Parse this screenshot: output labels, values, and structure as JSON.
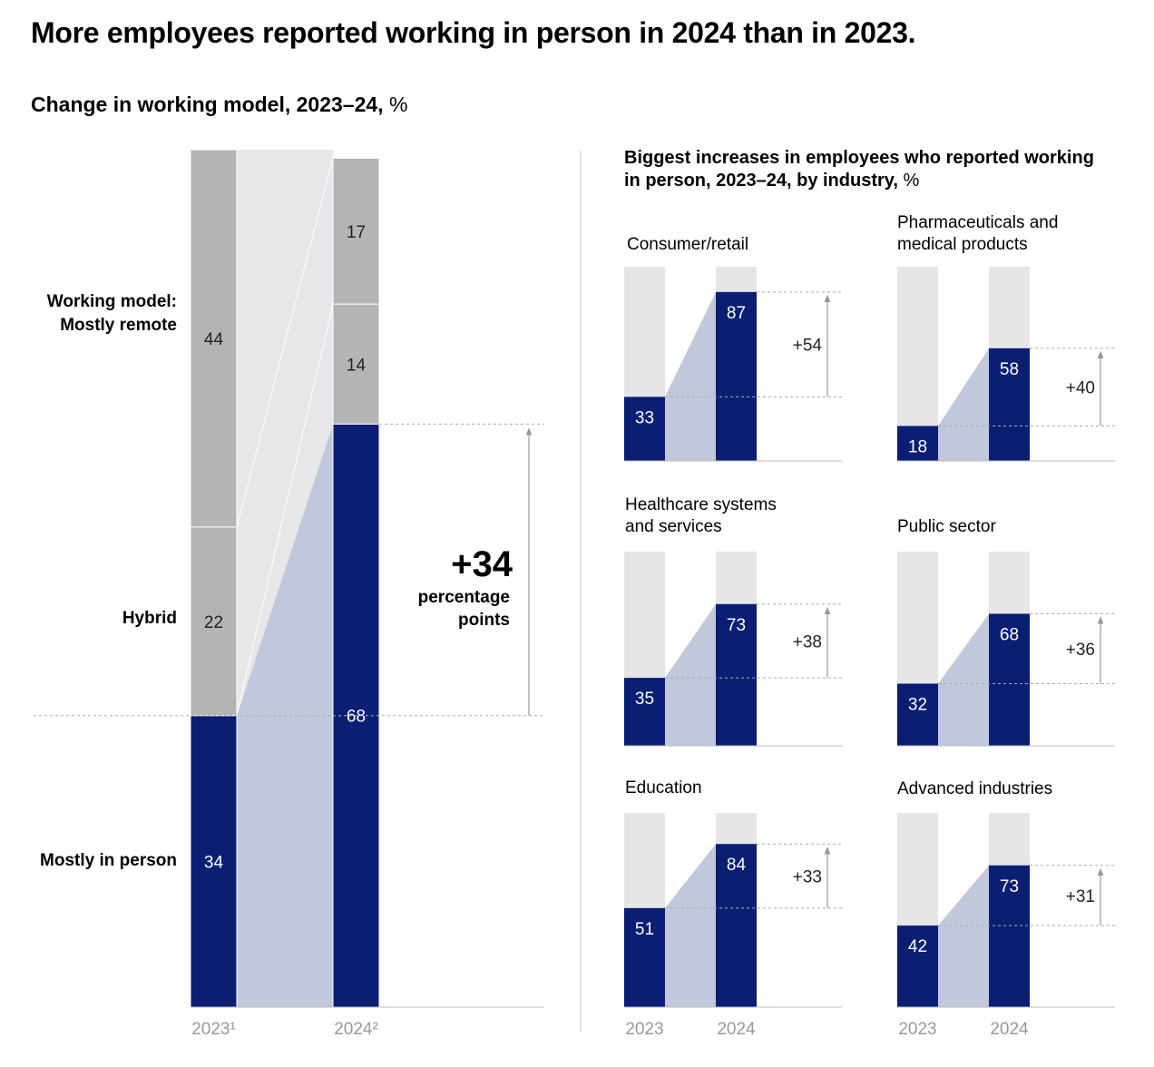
{
  "title": "More employees reported working in person in 2024 than in 2023.",
  "subtitle": {
    "text": "Change in working model, 2023–24,",
    "unit": "%"
  },
  "right_title": {
    "text": "Biggest increases in employees who reported working in person, 2023–24, by industry,",
    "unit": "%"
  },
  "category_labels": {
    "remote": "Working model: Mostly remote",
    "hybrid": "Hybrid",
    "in_person": "Mostly in person"
  },
  "main_x_labels": [
    "2023¹",
    "2024²"
  ],
  "main_change": {
    "value": "+34",
    "label": "percentage points"
  },
  "colors": {
    "in_person": "#0a1f74",
    "other": "#b4b4b4",
    "band_blue": "#c2c8dc",
    "band_grey": "#e6e7e9",
    "track": "#e6e6e6",
    "axis_label": "#999999"
  },
  "chart_data": [
    {
      "type": "bar",
      "stacked": true,
      "categories": [
        "2023",
        "2024"
      ],
      "series": [
        {
          "name": "Mostly in person",
          "values": [
            34,
            68
          ]
        },
        {
          "name": "Hybrid",
          "values": [
            22,
            14
          ]
        },
        {
          "name": "Mostly remote",
          "values": [
            44,
            17
          ]
        }
      ],
      "ylim": [
        0,
        100
      ]
    },
    {
      "type": "bar",
      "title": "",
      "categories": [
        "2023",
        "2024"
      ],
      "x_labels": [
        "2023",
        "2024"
      ],
      "ylim": [
        0,
        100
      ],
      "panels": [
        {
          "name": "Consumer/retail",
          "values": [
            33,
            87
          ],
          "change": "+54"
        },
        {
          "name": "Pharmaceuticals and medical products",
          "values": [
            18,
            58
          ],
          "change": "+40"
        },
        {
          "name": "Healthcare systems and services",
          "values": [
            35,
            73
          ],
          "change": "+38"
        },
        {
          "name": "Public sector",
          "values": [
            32,
            68
          ],
          "change": "+36"
        },
        {
          "name": "Education",
          "values": [
            51,
            84
          ],
          "change": "+33"
        },
        {
          "name": "Advanced industries",
          "values": [
            42,
            73
          ],
          "change": "+31"
        }
      ]
    }
  ]
}
